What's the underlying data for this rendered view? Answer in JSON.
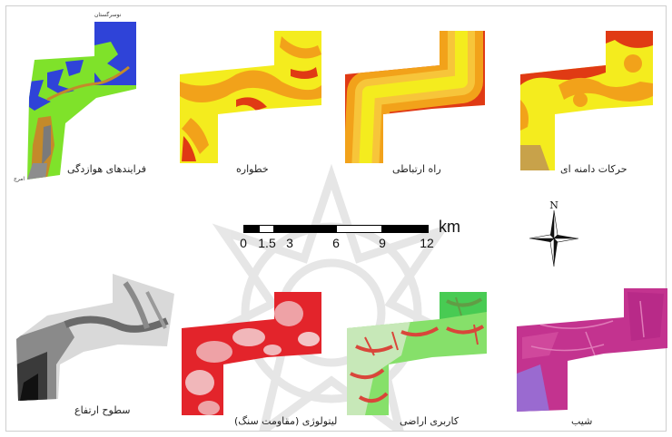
{
  "panels": {
    "landcover_processes": {
      "label": "فرایندهای هوازدگی",
      "corner_top": "نوسرگستان",
      "corner_bottom": "امرج"
    },
    "hazard": {
      "label": "خطواره"
    },
    "road": {
      "label": "راه ارتباطی"
    },
    "slope_movements": {
      "label": "حرکات دامنه ای"
    },
    "elevation": {
      "label": "سطوح ارتفاع"
    },
    "lithology": {
      "label": "لیتولوژی (مقاومت سنگ)"
    },
    "landuse": {
      "label": "کاربری اراضی"
    },
    "slope": {
      "label": "شیب"
    }
  },
  "scale_bar": {
    "unit": "km",
    "ticks": [
      "0",
      "1.5",
      "3",
      "6",
      "9",
      "12"
    ]
  },
  "compass": {
    "north_label": "N"
  },
  "colors": {
    "yellow": "#f4ec1e",
    "orange": "#f2a21a",
    "red": "#e03a14",
    "green": "#7fe22a",
    "blue": "#2f43d8",
    "magenta": "#c3338f",
    "gray": "#8d8d8d"
  }
}
